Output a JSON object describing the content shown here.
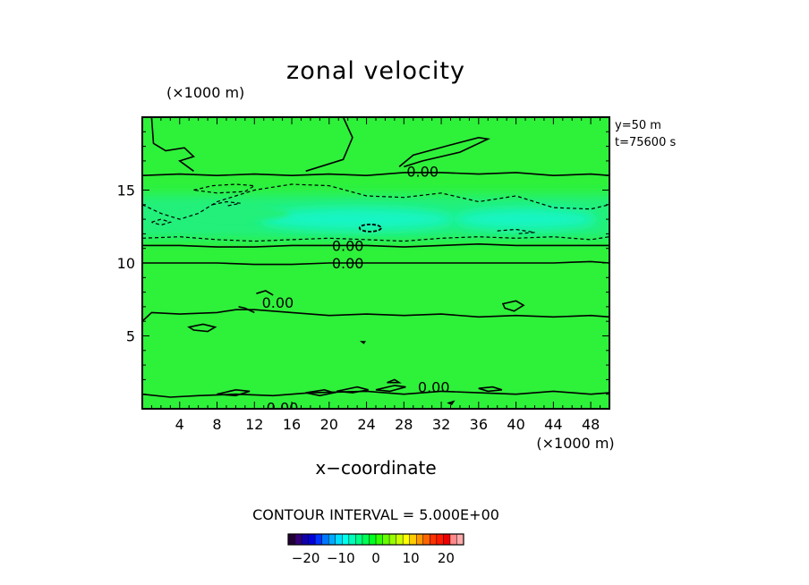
{
  "chart_data": {
    "type": "heatmap",
    "title": "zonal velocity",
    "xlabel": "x−coordinate",
    "x_unit": "(×1000 m)",
    "y_unit": "(×1000 m)",
    "xlim": [
      0,
      50
    ],
    "ylim": [
      0,
      20
    ],
    "x_ticks": [
      4,
      8,
      12,
      16,
      20,
      24,
      28,
      32,
      36,
      40,
      44,
      48
    ],
    "y_ticks": [
      5,
      10,
      15
    ],
    "info": [
      "y=50  m",
      "t=75600  s"
    ],
    "contour_interval_label": "CONTOUR INTERVAL = 5.000E+00",
    "contour_labels": [
      {
        "text": "0.00",
        "x": 30.0,
        "y": 16.3
      },
      {
        "text": "0.00",
        "x": 22.0,
        "y": 11.2
      },
      {
        "text": "0.00",
        "x": 22.0,
        "y": 10.0
      },
      {
        "text": "0.00",
        "x": 14.5,
        "y": 7.3
      },
      {
        "text": "0.00",
        "x": 31.2,
        "y": 1.5
      },
      {
        "text": "0.00",
        "x": 15.0,
        "y": 0.1
      }
    ],
    "colorbar": {
      "ticks": [
        -20,
        -10,
        0,
        10,
        20
      ],
      "tick_labels": [
        "−20",
        "−10",
        "0",
        "10",
        "20"
      ],
      "range": [
        -25,
        25
      ],
      "colors": [
        "#220033",
        "#330077",
        "#1100aa",
        "#0000dd",
        "#0033ff",
        "#0077ff",
        "#00aaff",
        "#00ddff",
        "#00ffee",
        "#00ffbb",
        "#00ff88",
        "#00ff55",
        "#00ff22",
        "#33ff00",
        "#66ff00",
        "#99ff00",
        "#ccff00",
        "#ffff00",
        "#ffcc00",
        "#ff9900",
        "#ff6600",
        "#ff3300",
        "#ff1a00",
        "#ee0000",
        "#ff8888",
        "#ffaaaa"
      ]
    },
    "field_colors": {
      "background": "#2ef13a",
      "light_band": "#20f07a",
      "cyan_core": "#19f5c4"
    }
  }
}
